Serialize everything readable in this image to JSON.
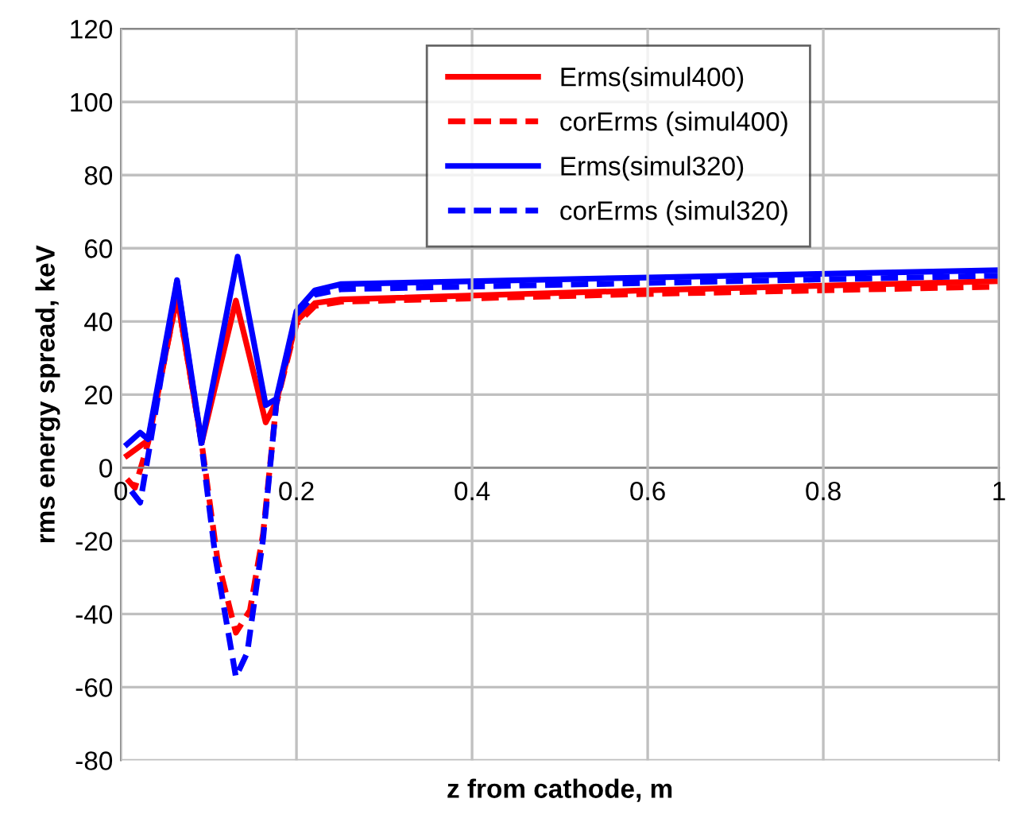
{
  "chart_data": {
    "type": "line",
    "xlabel": "z from cathode, m",
    "ylabel": "rms energy spread, keV",
    "xlim": [
      0,
      1
    ],
    "xticks": [
      0,
      0.2,
      0.4,
      0.6,
      0.8,
      1
    ],
    "ylim": [
      -80,
      120
    ],
    "yticks": [
      -80,
      -60,
      -40,
      -20,
      0,
      20,
      40,
      60,
      80,
      100,
      120
    ],
    "grid": true,
    "legend": "top right",
    "marker": "none",
    "series": [
      {
        "name": "Erms(simul400)",
        "color": "#ff0000",
        "line_style": "solid",
        "x": [
          0.007,
          0.031,
          0.064,
          0.092,
          0.131,
          0.165,
          0.177,
          0.2,
          0.221,
          0.251,
          0.6,
          1
        ],
        "values": [
          3.3,
          7.5,
          46.8,
          6.8,
          45.7,
          12.4,
          18,
          40,
          45,
          46,
          48.5,
          51
        ]
      },
      {
        "name": "corErms (simul400)",
        "color": "#ff0000",
        "line_style": "dashed",
        "x": [
          0.007,
          0.016,
          0.031,
          0.064,
          0.092,
          0.11,
          0.131,
          0.147,
          0.162,
          0.177,
          0.2,
          0.221,
          0.251,
          0.6,
          1
        ],
        "values": [
          -3.1,
          -5.5,
          6.8,
          46.8,
          6.8,
          -25,
          -45.1,
          -39,
          -18,
          17.4,
          39.3,
          44.2,
          45.4,
          47.5,
          49.5
        ]
      },
      {
        "name": "Erms(simul320)",
        "color": "#0000ff",
        "line_style": "solid",
        "x": [
          0.007,
          0.022,
          0.031,
          0.064,
          0.092,
          0.133,
          0.165,
          0.177,
          0.2,
          0.221,
          0.251,
          0.6,
          1
        ],
        "values": [
          6.4,
          9.6,
          7.8,
          51.3,
          6.8,
          57.7,
          17.1,
          18.8,
          42.8,
          48.5,
          50.2,
          52,
          54
        ]
      },
      {
        "name": "corErms (simul320)",
        "color": "#0000ff",
        "line_style": "dashed",
        "x": [
          0.012,
          0.022,
          0.033,
          0.064,
          0.092,
          0.108,
          0.131,
          0.144,
          0.162,
          0.177,
          0.2,
          0.221,
          0.251,
          0.6,
          1
        ],
        "values": [
          -6.4,
          -9.5,
          6,
          51,
          6,
          -25,
          -57.2,
          -50.5,
          -19.4,
          17.4,
          42,
          47.3,
          48.8,
          50.5,
          52.5
        ]
      }
    ]
  }
}
